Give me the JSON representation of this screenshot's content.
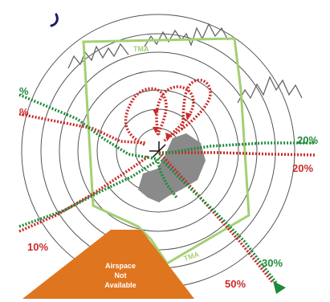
{
  "colors": {
    "red": "#cc2a2a",
    "green": "#1f8a3a",
    "tma": "#a4cf73",
    "orange": "#e0751f",
    "rings": "#555555",
    "terrain": "#8a8a8a",
    "mountains": "#666666",
    "airspace_text": "#ffffff"
  },
  "tma_labels": [
    "TMA",
    "TMA"
  ],
  "airspace_label": [
    "Airspace",
    "Not",
    "Available"
  ],
  "percent_labels": {
    "left_green": "%",
    "left_red": "%",
    "right_green": "20%",
    "right_red": "20%",
    "bottom_left_red": "10%",
    "bottom_right_green": "30%",
    "bottom_right_red": "50%"
  },
  "icons": {
    "north_mark": "curl-mark-icon",
    "arrow": "arrowhead-icon"
  }
}
